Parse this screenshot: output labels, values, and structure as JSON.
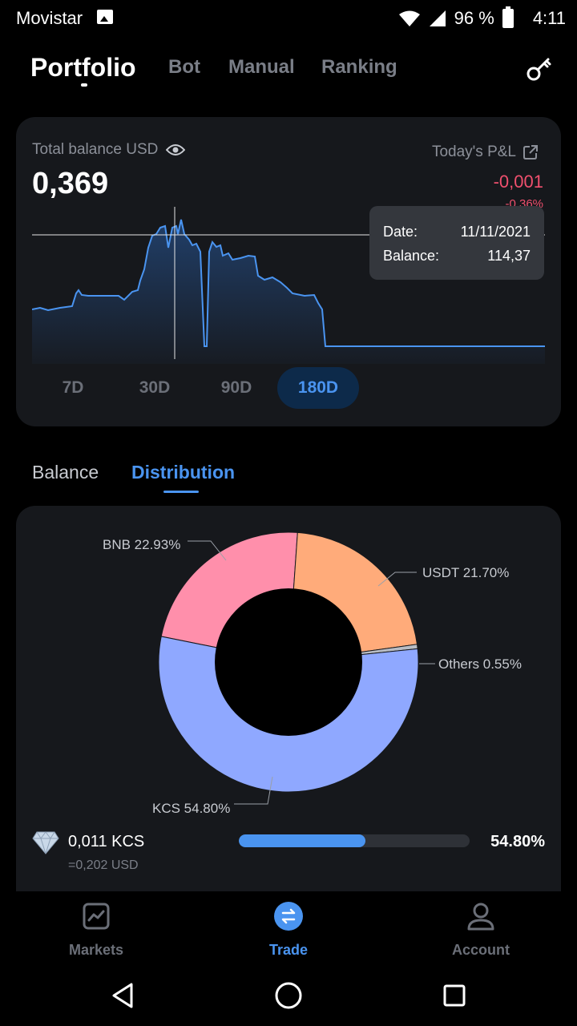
{
  "status_bar": {
    "carrier": "Movistar",
    "battery": "96 %",
    "time": "4:11"
  },
  "header": {
    "tabs": [
      {
        "label": "Portfolio",
        "active": true
      },
      {
        "label": "Bot",
        "active": false
      },
      {
        "label": "Manual",
        "active": false
      },
      {
        "label": "Ranking",
        "active": false
      }
    ]
  },
  "balance_card": {
    "label": "Total balance USD",
    "value": "0,369",
    "pnl_label": "Today's P&L",
    "pnl_value": "-0,001",
    "pnl_percent": "-0,36%",
    "tooltip": {
      "date_label": "Date:",
      "date_value": "11/11/2021",
      "balance_label": "Balance:",
      "balance_value": "114,37"
    },
    "range_tabs": [
      {
        "label": "7D",
        "active": false
      },
      {
        "label": "30D",
        "active": false
      },
      {
        "label": "90D",
        "active": false
      },
      {
        "label": "180D",
        "active": true
      }
    ]
  },
  "section_tabs": [
    {
      "label": "Balance",
      "active": false
    },
    {
      "label": "Distribution",
      "active": true
    }
  ],
  "distribution": {
    "slices": [
      {
        "name": "BNB",
        "label": "BNB 22.93%",
        "percent": 22.93,
        "color": "#ff8fab"
      },
      {
        "name": "USDT",
        "label": "USDT 21.70%",
        "percent": 21.7,
        "color": "#ffab7a"
      },
      {
        "name": "Others",
        "label": "Others 0.55%",
        "percent": 0.55,
        "color": "#b8bcc4"
      },
      {
        "name": "KCS",
        "label": "KCS 54.80%",
        "percent": 54.8,
        "color": "#8fa8ff"
      }
    ],
    "asset": {
      "amount": "0,011 KCS",
      "usd": "=0,202 USD",
      "percent_label": "54.80%",
      "progress": 0.548
    }
  },
  "bottom_nav": [
    {
      "label": "Markets",
      "icon": "chart-icon",
      "active": false
    },
    {
      "label": "Trade",
      "icon": "swap-icon",
      "active": true
    },
    {
      "label": "Account",
      "icon": "user-icon",
      "active": false
    }
  ],
  "colors": {
    "accent": "#4a94f0",
    "negative": "#f0506e",
    "card": "#16181c"
  }
}
